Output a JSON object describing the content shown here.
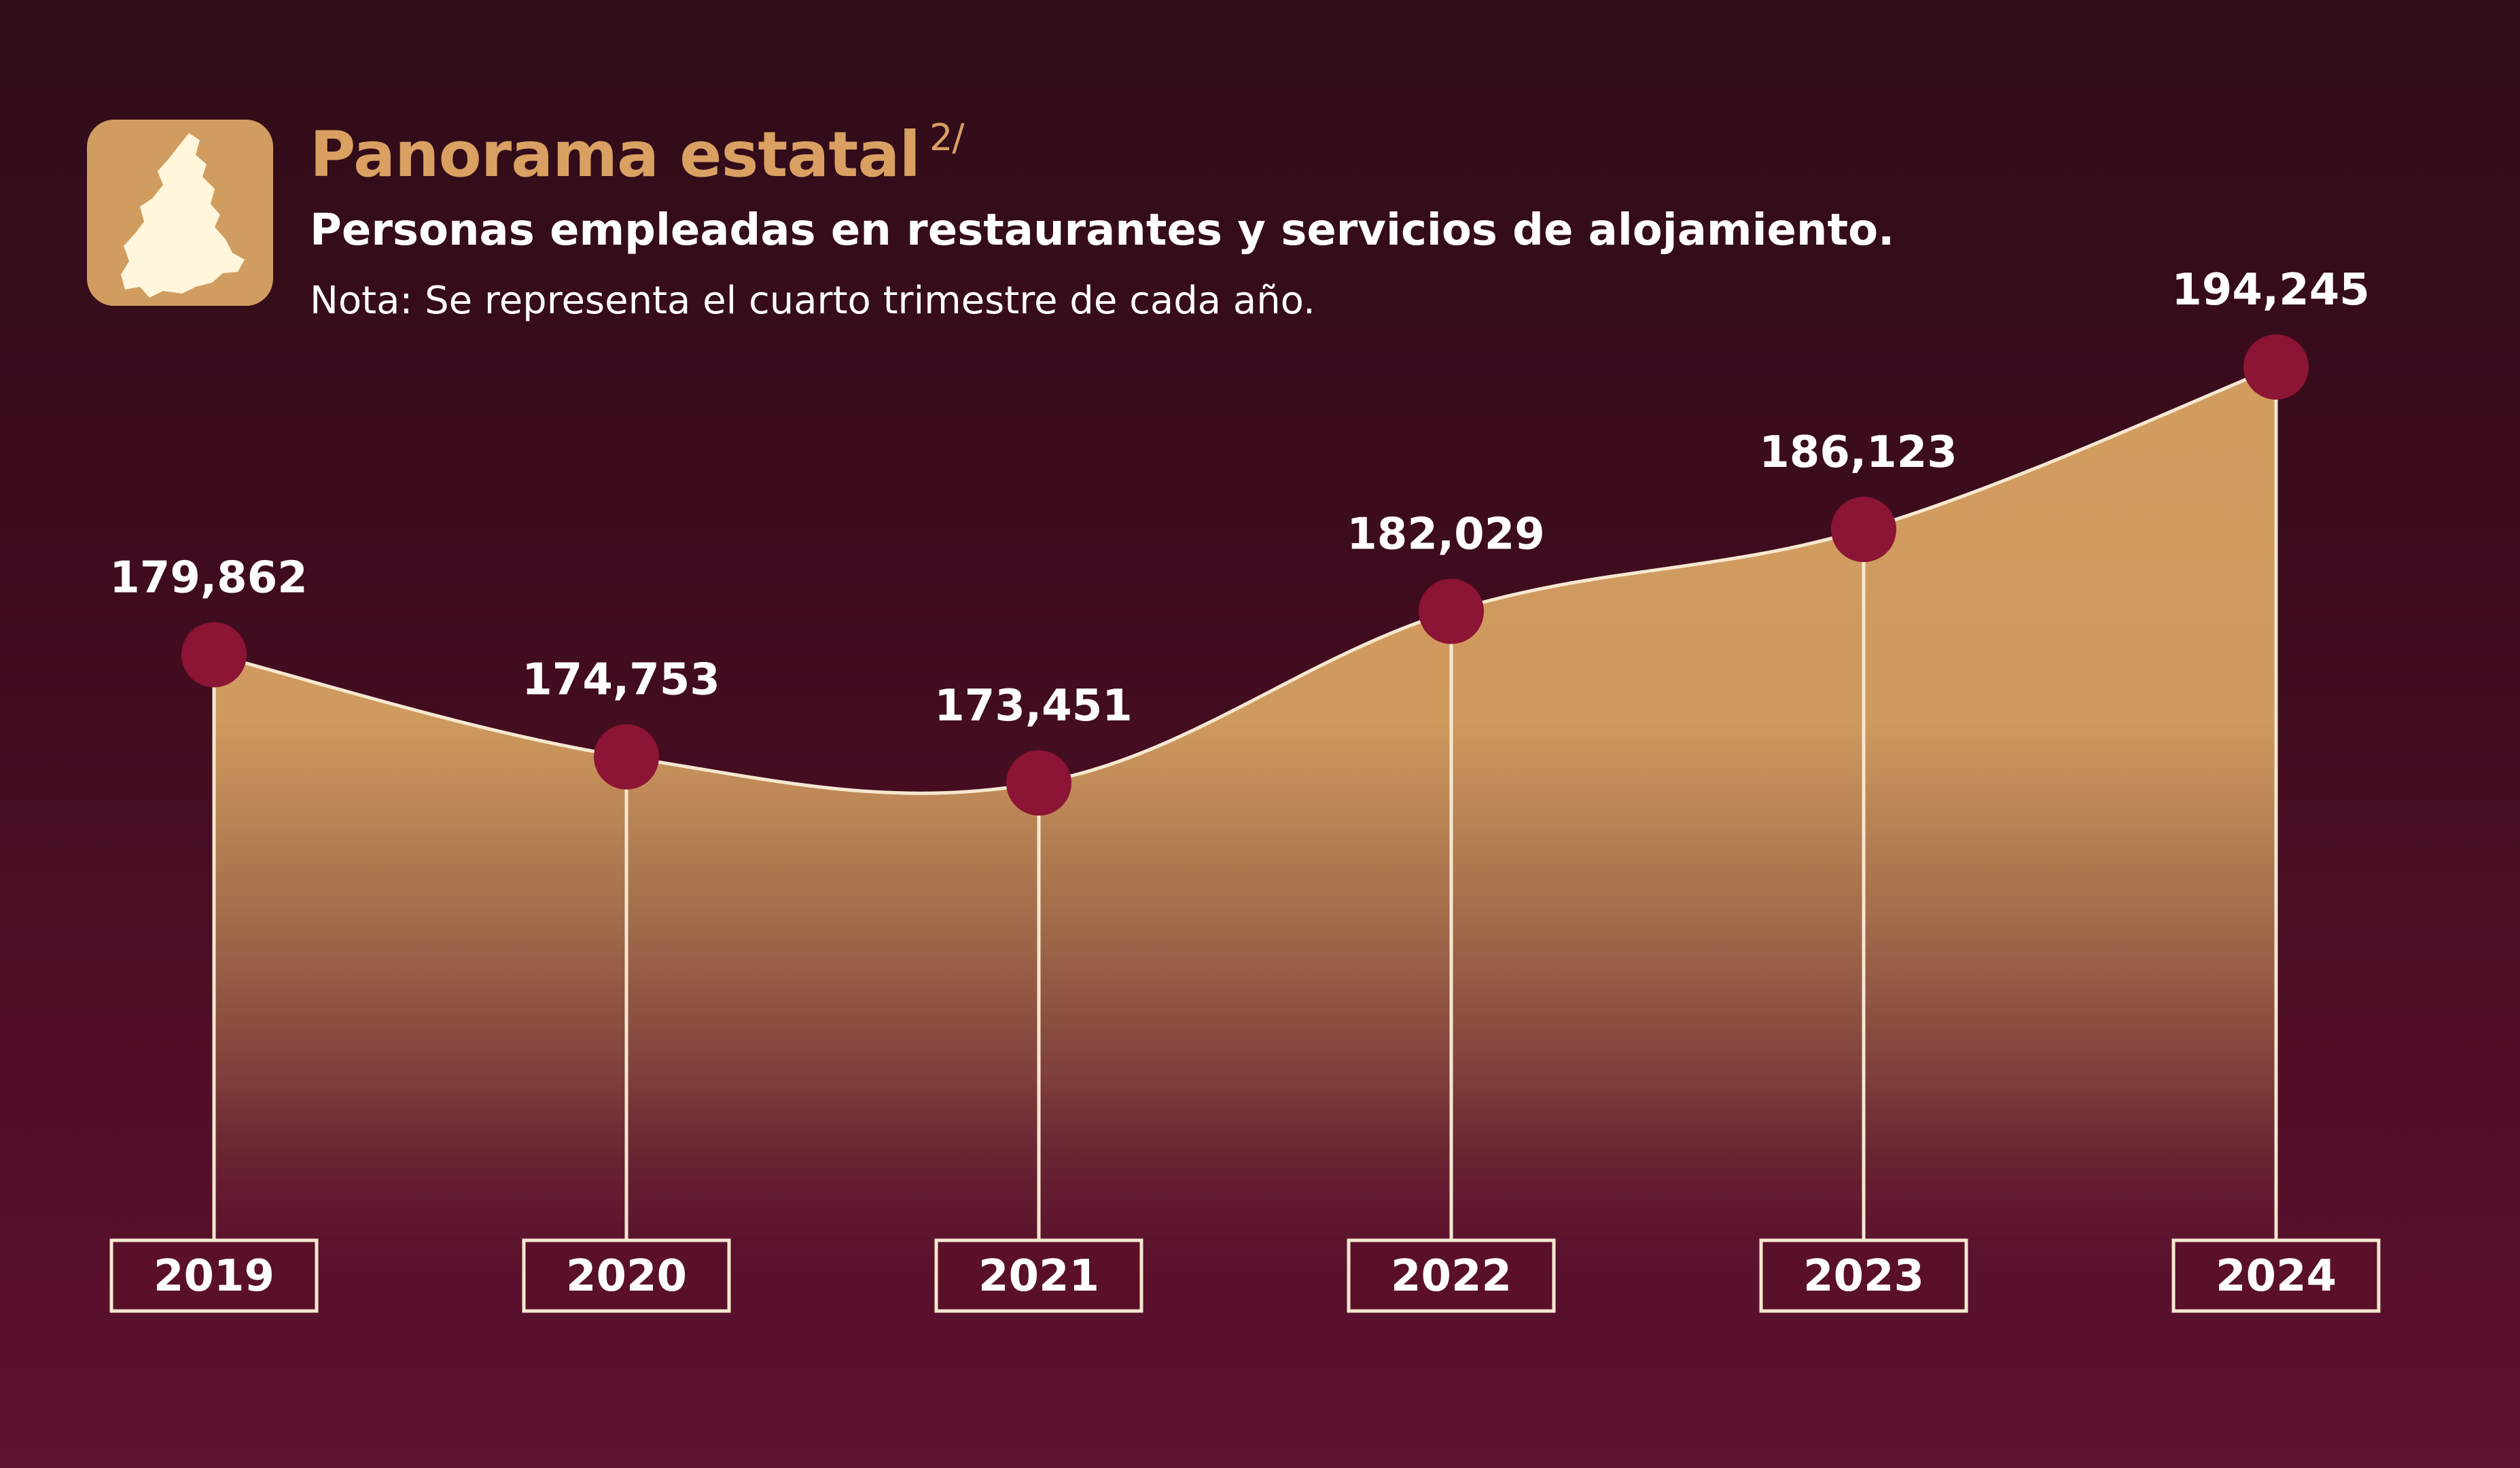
{
  "header": {
    "title": "Panorama estatal",
    "footnote_marker": "2/",
    "subtitle": "Personas empleadas en restaurantes y servicios de alojamiento.",
    "note": "Nota: Se representa el cuarto trimestre de cada año."
  },
  "colors": {
    "background_top": "#2f0c18",
    "background_bottom": "#5e1130",
    "accent": "#d19c60",
    "marker": "#8c1434",
    "line": "#f5e8d0",
    "map_fill": "#fff6dc"
  },
  "icons": {
    "state_map": "puebla-map-icon"
  },
  "chart_data": {
    "type": "area",
    "title": "Personas empleadas en restaurantes y servicios de alojamiento.",
    "categories": [
      "2019",
      "2020",
      "2021",
      "2022",
      "2023",
      "2024"
    ],
    "series": [
      {
        "name": "Personas empleadas",
        "values": [
          179862,
          174753,
          173451,
          182029,
          186123,
          194245
        ],
        "labels": [
          "179,862",
          "174,753",
          "173,451",
          "182,029",
          "186,123",
          "194,245"
        ]
      }
    ],
    "xlabel": "",
    "ylabel": "",
    "ylim": [
      160000,
      200000
    ],
    "grid": false
  }
}
